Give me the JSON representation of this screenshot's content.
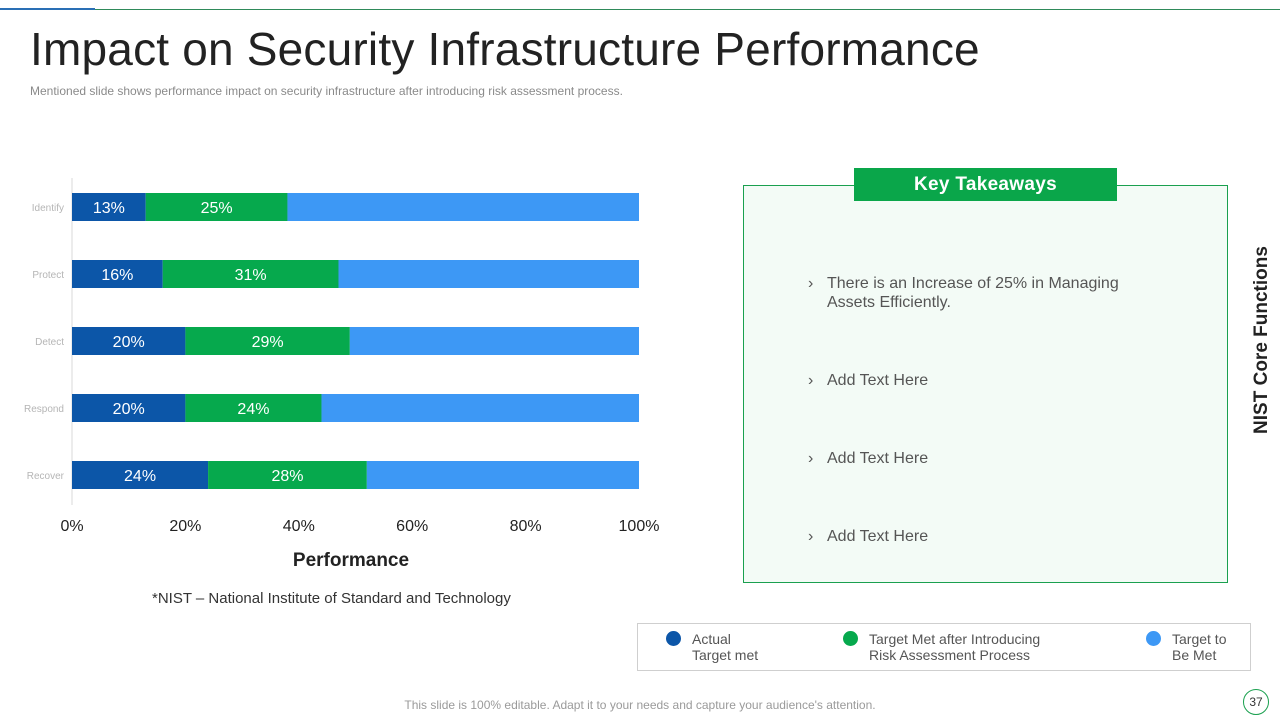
{
  "slide": {
    "title": "Impact on Security Infrastructure Performance",
    "subtitle": "Mentioned slide shows performance  impact on security infrastructure  after introducing risk assessment process.",
    "footnote": "*NIST – National Institute of Standard and Technology",
    "side_label": "NIST Core Functions",
    "bottom_note": "This slide is 100% editable. Adapt it to your needs and capture your audience's attention.",
    "page_number": "37"
  },
  "takeaways": {
    "header": "Key Takeaways",
    "bullet": "›",
    "items": [
      "There is an Increase  of 25% in Managing Assets Efficiently.",
      "Add Text Here",
      "Add Text Here",
      "Add Text Here"
    ]
  },
  "legend": [
    {
      "label_line1": "Actual",
      "label_line2": "Target met",
      "color": "#0c56a8"
    },
    {
      "label_line1": "Target Met after Introducing",
      "label_line2": "Risk Assessment Process",
      "color": "#06a94d"
    },
    {
      "label_line1": "Target to",
      "label_line2": "Be Met",
      "color": "#3d98f5"
    }
  ],
  "chart_data": {
    "type": "bar",
    "orientation": "horizontal",
    "stacked": true,
    "categories": [
      "Identify",
      "Protect",
      "Detect",
      "Respond",
      "Recover"
    ],
    "series": [
      {
        "name": "Actual Target met",
        "values": [
          13,
          16,
          20,
          20,
          24
        ],
        "labels": [
          "13%",
          "16%",
          "20%",
          "20%",
          "24%"
        ],
        "color": "#0c56a8"
      },
      {
        "name": "Target Met after Introducing Risk Assessment Process",
        "values": [
          25,
          31,
          29,
          24,
          28
        ],
        "labels": [
          "25%",
          "31%",
          "29%",
          "24%",
          "28%"
        ],
        "color": "#06a94d"
      },
      {
        "name": "Target to Be Met",
        "values": [
          62,
          53,
          51,
          56,
          48
        ],
        "color": "#3d98f5"
      }
    ],
    "xlabel": "Performance",
    "xlim": [
      0,
      100
    ],
    "xticks": [
      "0%",
      "20%",
      "40%",
      "60%",
      "80%",
      "100%"
    ]
  }
}
